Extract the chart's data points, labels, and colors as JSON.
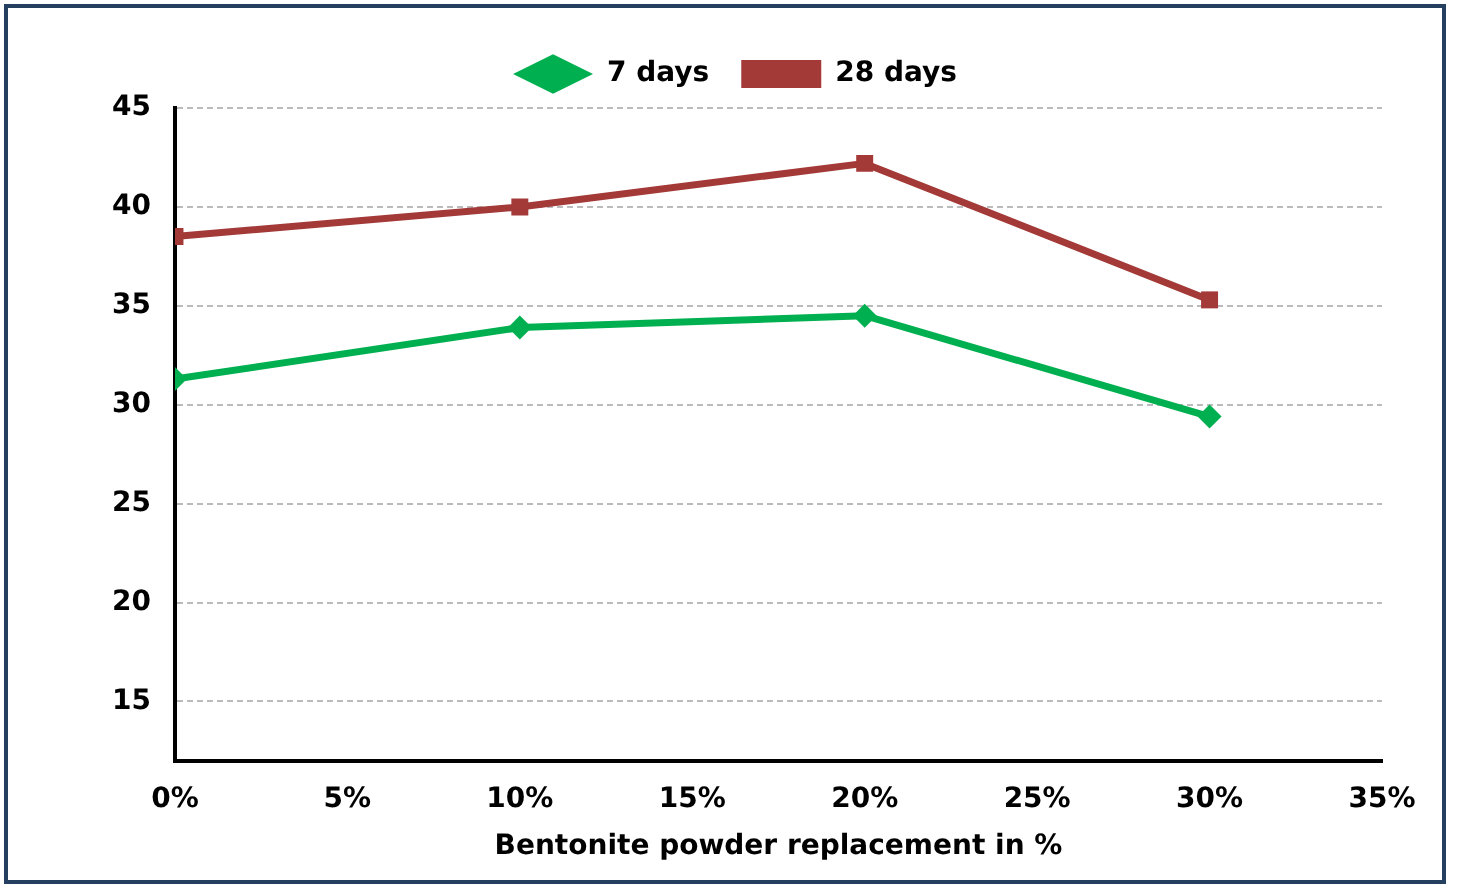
{
  "chart_data": {
    "type": "line",
    "xlabel": "Bentonite powder replacement in %",
    "x": [
      0,
      10,
      20,
      30
    ],
    "xlim": [
      0,
      35
    ],
    "xticks": [
      {
        "value": 0,
        "label": "0%"
      },
      {
        "value": 5,
        "label": "5%"
      },
      {
        "value": 10,
        "label": "10%"
      },
      {
        "value": 15,
        "label": "15%"
      },
      {
        "value": 20,
        "label": "20%"
      },
      {
        "value": 25,
        "label": "25%"
      },
      {
        "value": 30,
        "label": "30%"
      },
      {
        "value": 35,
        "label": "35%"
      }
    ],
    "ylim": [
      12,
      45
    ],
    "yticks": [
      15,
      20,
      25,
      30,
      35,
      40,
      45
    ],
    "grid": "y",
    "legend": "top",
    "line_style": "solid",
    "series": [
      {
        "name": "7 days",
        "color": "#00b050",
        "marker": "diamond",
        "values": [
          31.3,
          33.9,
          34.5,
          29.4
        ]
      },
      {
        "name": "28 days",
        "color": "#a33a38",
        "marker": "square",
        "values": [
          38.5,
          40.0,
          42.2,
          35.3
        ]
      }
    ]
  }
}
